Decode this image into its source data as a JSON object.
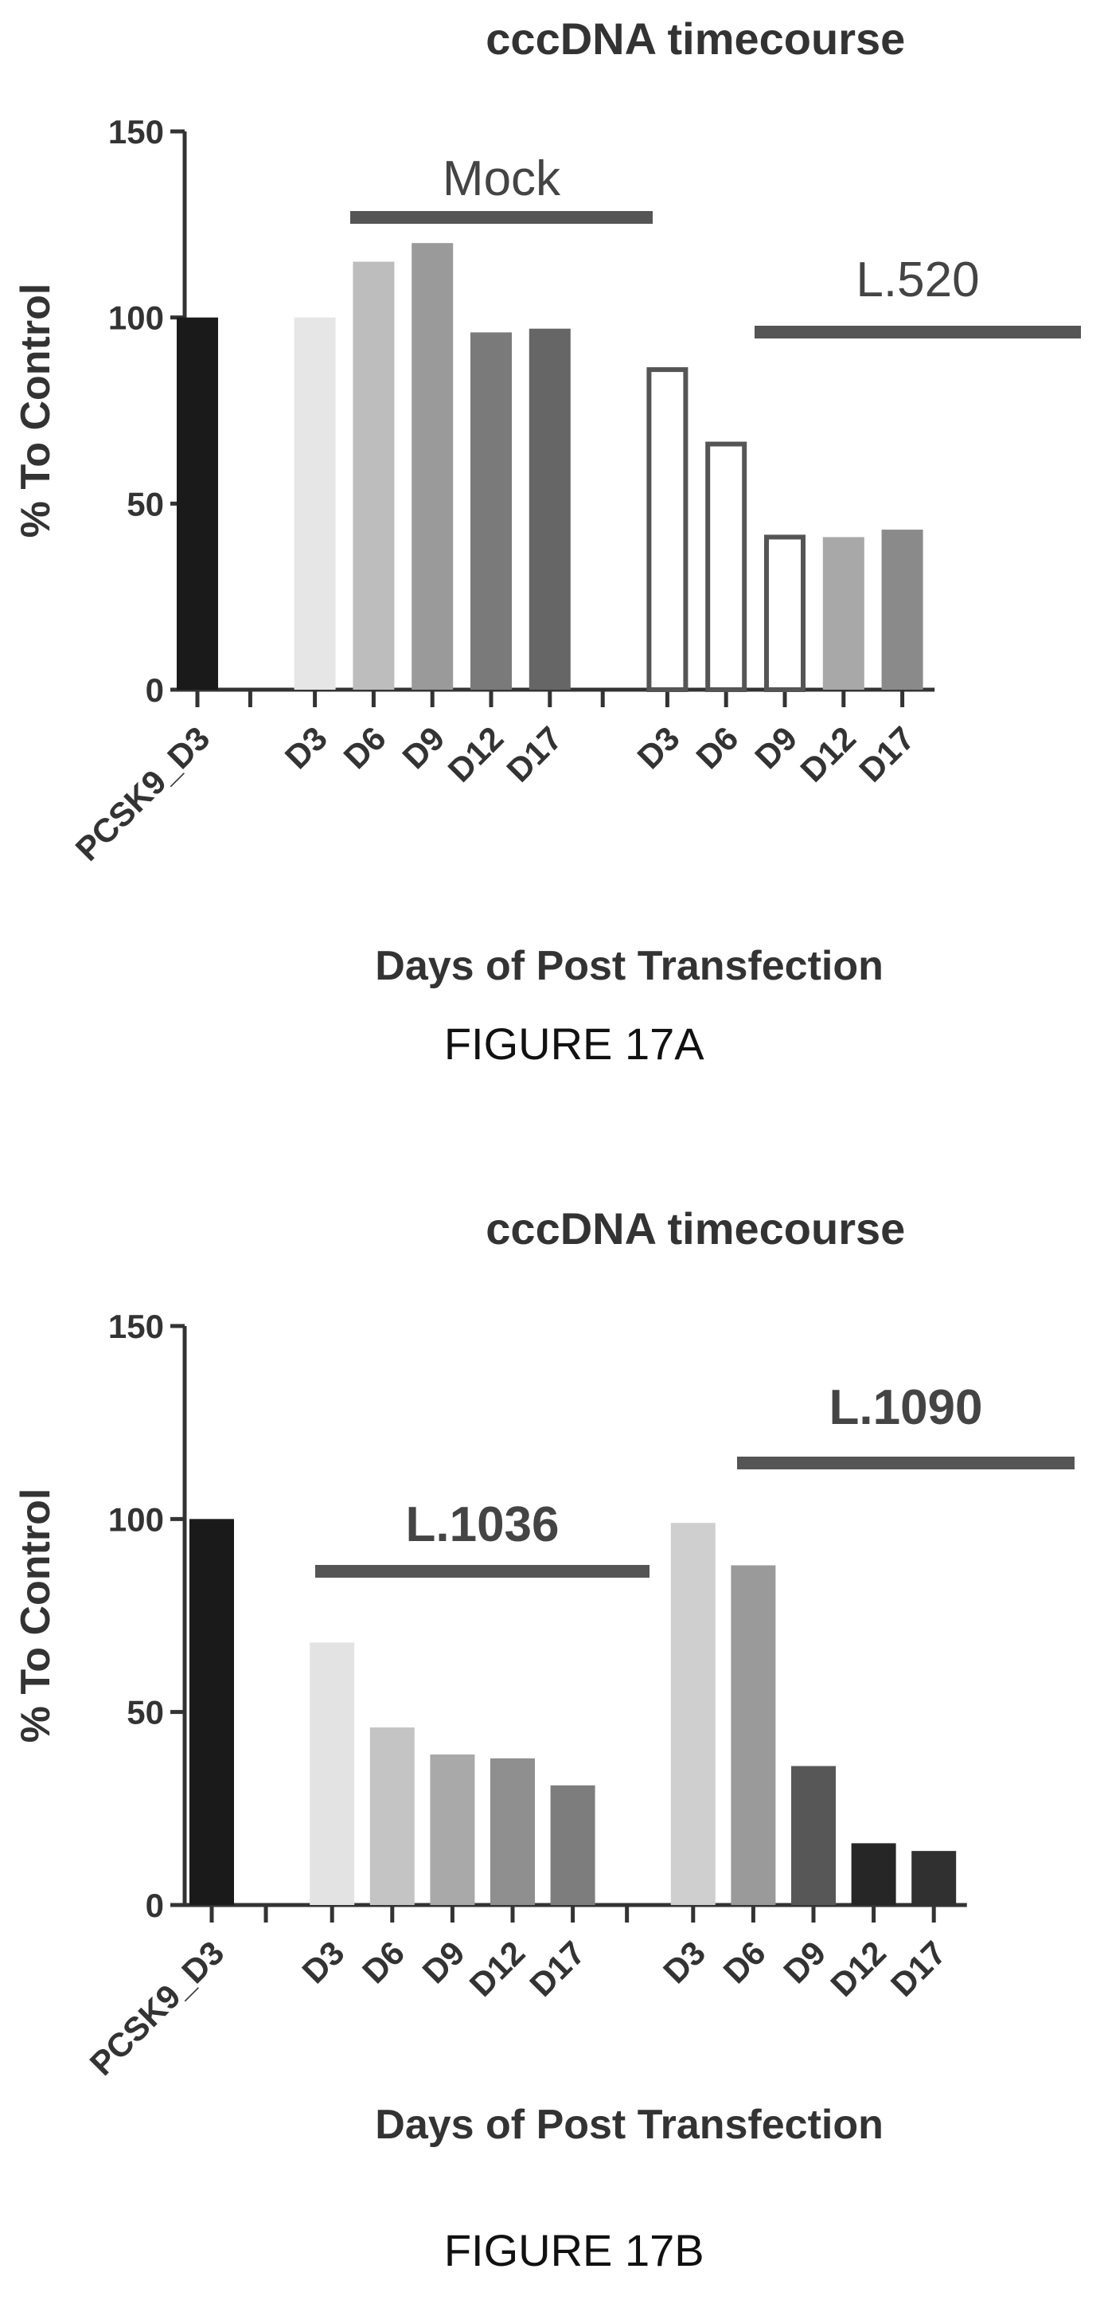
{
  "charts": [
    {
      "figure_label": "FIGURE 17A",
      "group_bold": false,
      "chart_data": {
        "type": "bar",
        "title": "cccDNA timecourse",
        "xlabel": "Days of Post Transfection",
        "ylabel": "% To Control",
        "ylim": [
          0,
          150
        ],
        "yticks": [
          "0",
          "50",
          "100",
          "150"
        ],
        "categories": [
          "PCSK9_D3",
          "D3",
          "D6",
          "D9",
          "D12",
          "D17",
          "D3",
          "D6",
          "D9",
          "D12",
          "D17"
        ],
        "values": [
          100,
          100,
          115,
          120,
          96,
          97,
          86,
          66,
          41,
          41,
          43
        ],
        "groups": [
          {
            "label": "Mock",
            "categories": [
              1,
              2,
              3,
              4,
              5
            ]
          },
          {
            "label": "L.520",
            "categories": [
              6,
              7,
              8,
              9,
              10
            ]
          }
        ],
        "bar_colors": [
          "#1a1a1a",
          "#e6e6e6",
          "#bdbdbd",
          "#9a9a9a",
          "#7a7a7a",
          "#666666",
          "#ffffff",
          "#ffffff",
          "#ffffff",
          "#a8a8a8",
          "#8a8a8a"
        ],
        "bar_outline": [
          false,
          false,
          false,
          false,
          false,
          false,
          true,
          true,
          true,
          false,
          false
        ],
        "grid": false
      }
    },
    {
      "figure_label": "FIGURE 17B",
      "group_bold": true,
      "chart_data": {
        "type": "bar",
        "title": "cccDNA timecourse",
        "xlabel": "Days of Post Transfection",
        "ylabel": "% To Control",
        "ylim": [
          0,
          150
        ],
        "yticks": [
          "0",
          "50",
          "100",
          "150"
        ],
        "categories": [
          "PCSK9_D3",
          "D3",
          "D6",
          "D9",
          "D12",
          "D17",
          "D3",
          "D6",
          "D9",
          "D12",
          "D17"
        ],
        "values": [
          100,
          68,
          46,
          39,
          38,
          31,
          99,
          88,
          36,
          16,
          14
        ],
        "groups": [
          {
            "label": "L.1036",
            "categories": [
              1,
              2,
              3,
              4,
              5
            ]
          },
          {
            "label": "L.1090",
            "categories": [
              6,
              7,
              8,
              9,
              10
            ]
          }
        ],
        "bar_colors": [
          "#1a1a1a",
          "#e3e3e3",
          "#c4c4c4",
          "#a9a9a9",
          "#8f8f8f",
          "#7d7d7d",
          "#cfcfcf",
          "#9a9a9a",
          "#575757",
          "#262626",
          "#303030"
        ],
        "bar_outline": [
          false,
          false,
          false,
          false,
          false,
          false,
          false,
          false,
          false,
          false,
          false
        ],
        "grid": false
      }
    }
  ]
}
